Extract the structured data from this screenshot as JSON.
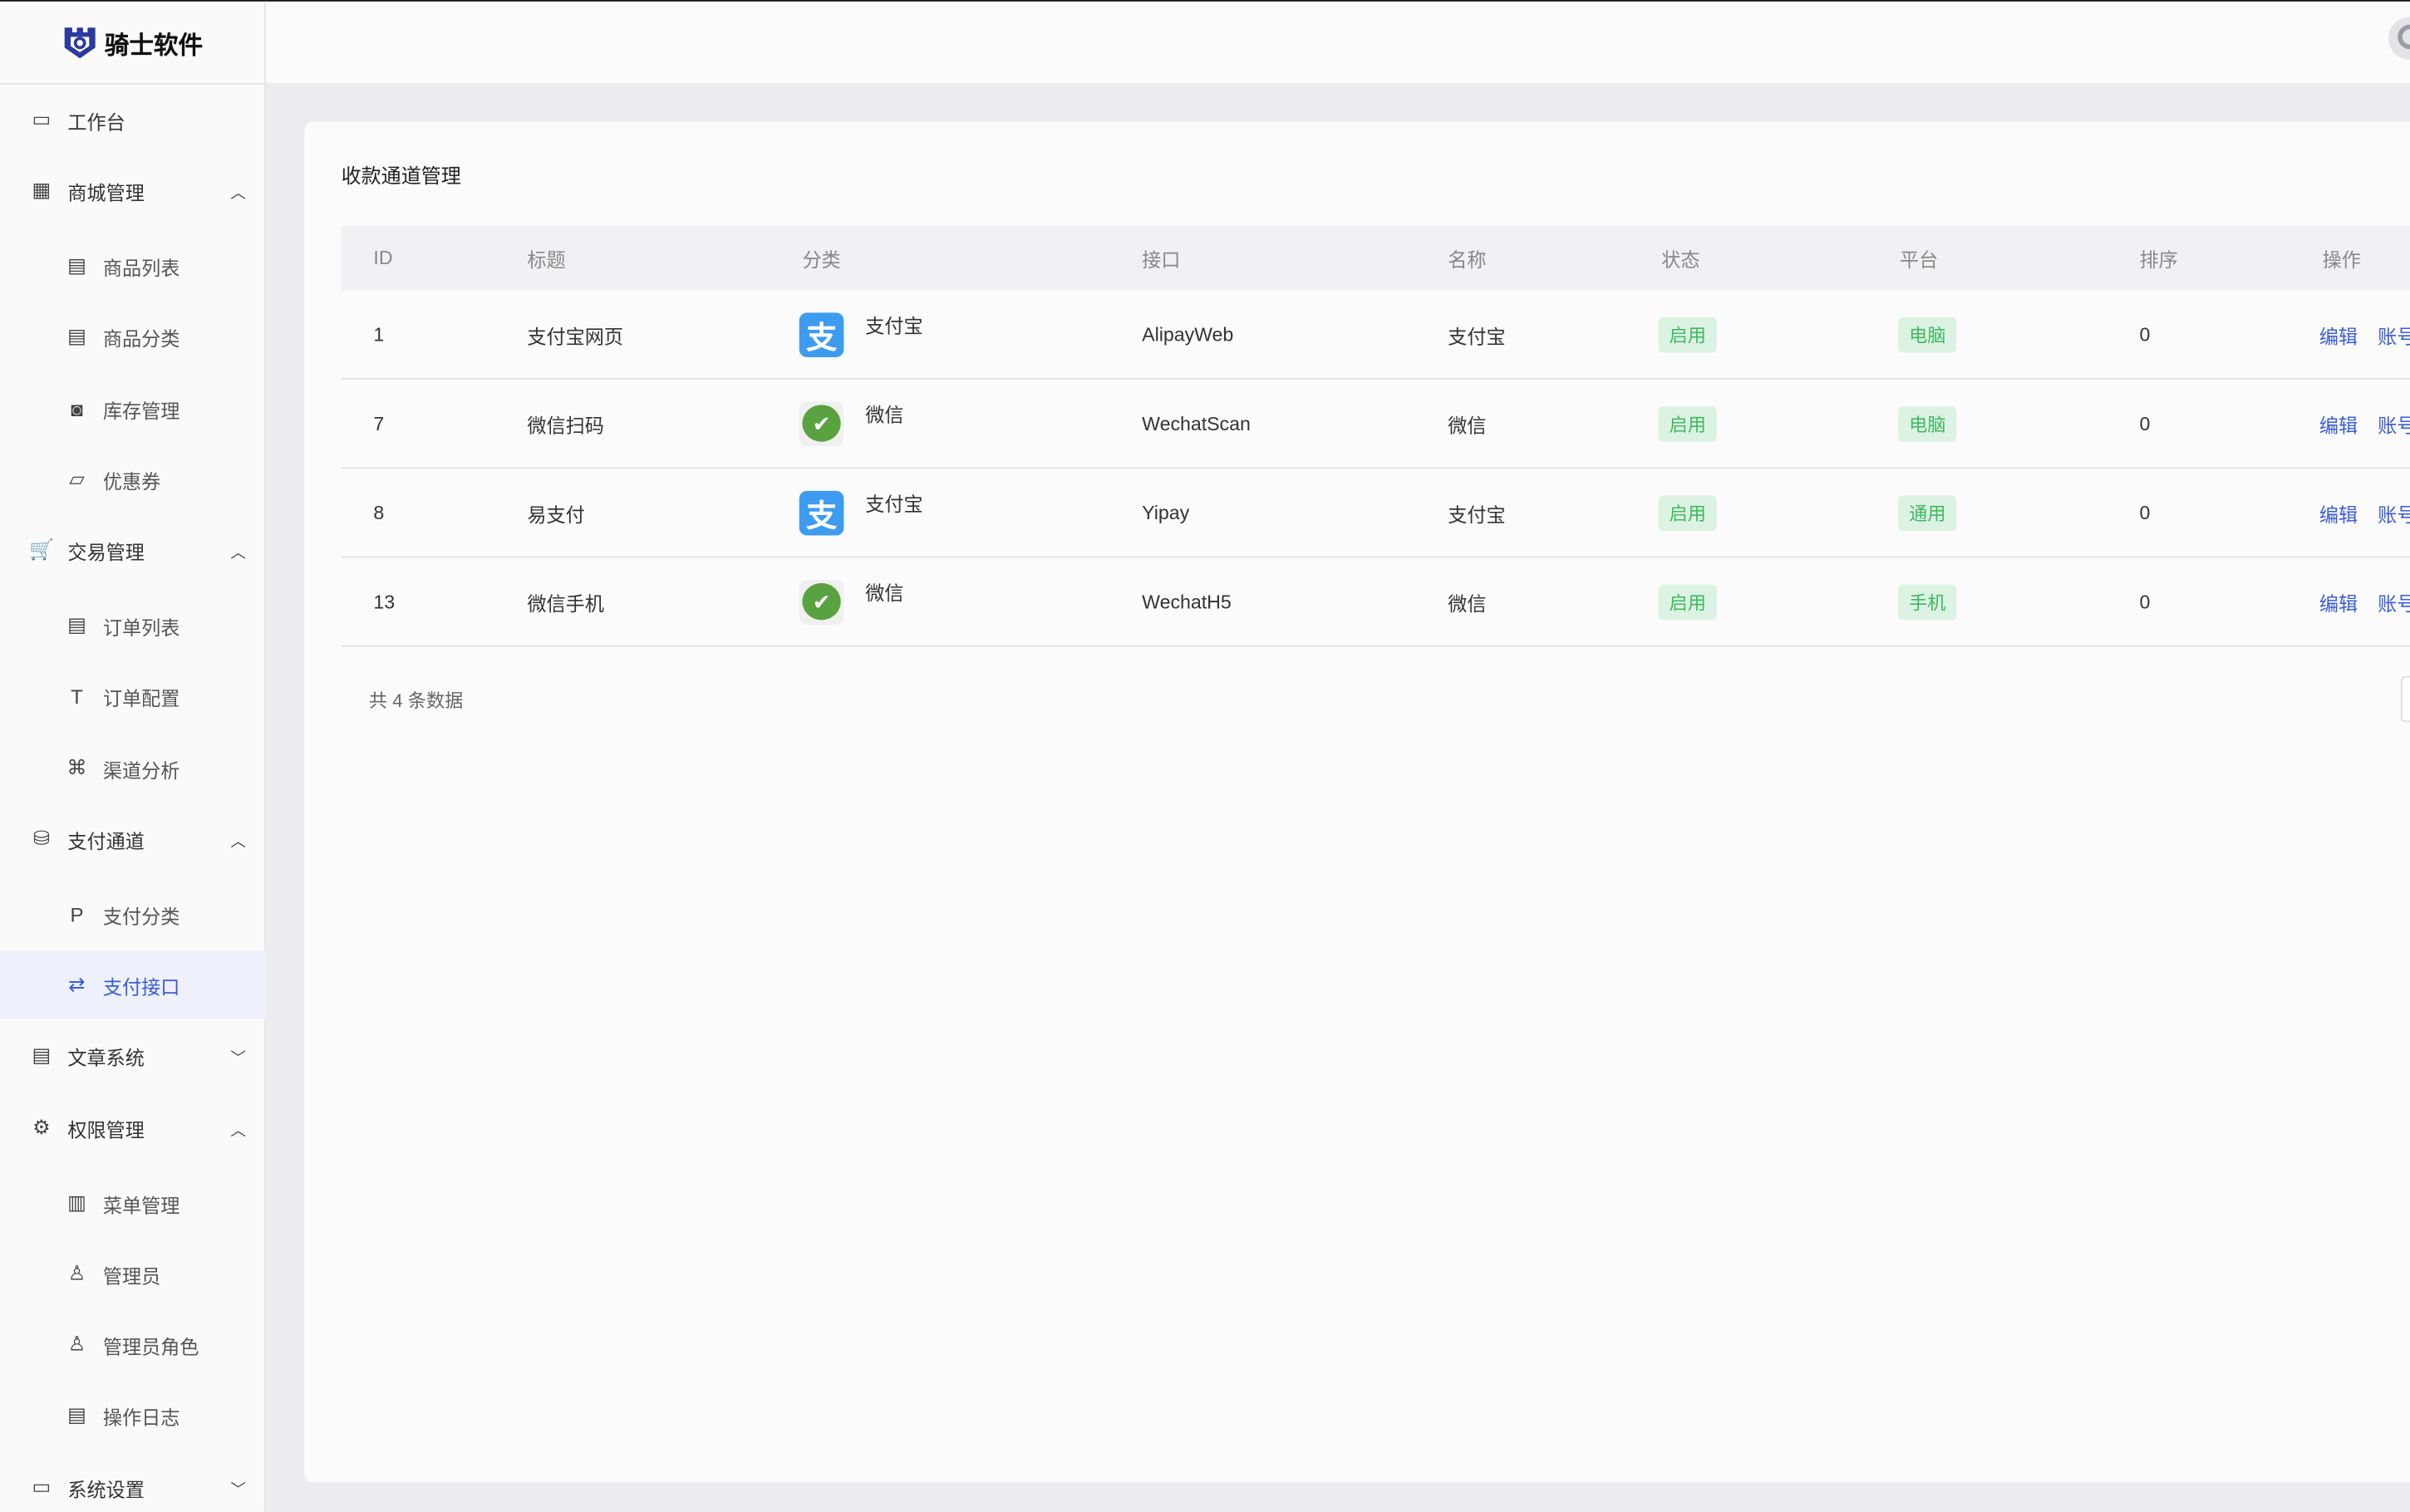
{
  "brand": {
    "name": "骑士软件",
    "color": "#2b3a9c"
  },
  "sidebar": {
    "items": [
      {
        "label": "工作台",
        "icon": "monitor-icon",
        "type": "top"
      },
      {
        "label": "商城管理",
        "icon": "store-icon",
        "type": "top",
        "chevron": "up"
      },
      {
        "label": "商品列表",
        "icon": "list-icon",
        "type": "sub"
      },
      {
        "label": "商品分类",
        "icon": "category-icon",
        "type": "sub"
      },
      {
        "label": "库存管理",
        "icon": "inventory-icon",
        "type": "sub"
      },
      {
        "label": "优惠券",
        "icon": "folder-icon",
        "type": "sub"
      },
      {
        "label": "交易管理",
        "icon": "cart-icon",
        "type": "top",
        "chevron": "up"
      },
      {
        "label": "订单列表",
        "icon": "order-list-icon",
        "type": "sub"
      },
      {
        "label": "订单配置",
        "icon": "config-icon",
        "type": "sub"
      },
      {
        "label": "渠道分析",
        "icon": "analysis-icon",
        "type": "sub"
      },
      {
        "label": "支付通道",
        "icon": "payment-icon",
        "type": "top",
        "chevron": "up"
      },
      {
        "label": "支付分类",
        "icon": "p-icon",
        "type": "sub"
      },
      {
        "label": "支付接口",
        "icon": "swap-icon",
        "type": "sub",
        "active": true
      },
      {
        "label": "文章系统",
        "icon": "article-icon",
        "type": "top",
        "chevron": "down"
      },
      {
        "label": "权限管理",
        "icon": "gear-icon",
        "type": "top",
        "chevron": "up"
      },
      {
        "label": "菜单管理",
        "icon": "menu-icon",
        "type": "sub"
      },
      {
        "label": "管理员",
        "icon": "user-icon",
        "type": "sub"
      },
      {
        "label": "管理员角色",
        "icon": "user-role-icon",
        "type": "sub"
      },
      {
        "label": "操作日志",
        "icon": "log-icon",
        "type": "sub"
      },
      {
        "label": "系统设置",
        "icon": "settings-icon",
        "type": "top",
        "chevron": "down"
      }
    ]
  },
  "main": {
    "title": "收款通道管理",
    "columns": [
      "ID",
      "标题",
      "分类",
      "接口",
      "名称",
      "状态",
      "平台",
      "排序",
      "操作"
    ],
    "rows": [
      {
        "id": "1",
        "title": "支付宝网页",
        "category": "支付宝",
        "category_icon": "alipay",
        "api": "AlipayWeb",
        "name": "支付宝",
        "status": "启用",
        "platform": "电脑",
        "sort": "0",
        "actions": [
          "编辑",
          "账号"
        ]
      },
      {
        "id": "7",
        "title": "微信扫码",
        "category": "微信",
        "category_icon": "wechat",
        "api": "WechatScan",
        "name": "微信",
        "status": "启用",
        "platform": "电脑",
        "sort": "0",
        "actions": [
          "编辑",
          "账号"
        ]
      },
      {
        "id": "8",
        "title": "易支付",
        "category": "支付宝",
        "category_icon": "alipay",
        "api": "Yipay",
        "name": "支付宝",
        "status": "启用",
        "platform": "通用",
        "sort": "0",
        "actions": [
          "编辑",
          "账号"
        ]
      },
      {
        "id": "13",
        "title": "微信手机",
        "category": "微信",
        "category_icon": "wechat",
        "api": "WechatH5",
        "name": "微信",
        "status": "启用",
        "platform": "手机",
        "sort": "0",
        "actions": [
          "编辑",
          "账号"
        ]
      }
    ],
    "total": "共 4 条数据"
  },
  "colors": {
    "accent": "#3b5bdb",
    "tag_bg": "#dcf3e3",
    "tag_text": "#3fb860",
    "alipay": "#3d9cf0",
    "wechat": "#5aa241"
  }
}
